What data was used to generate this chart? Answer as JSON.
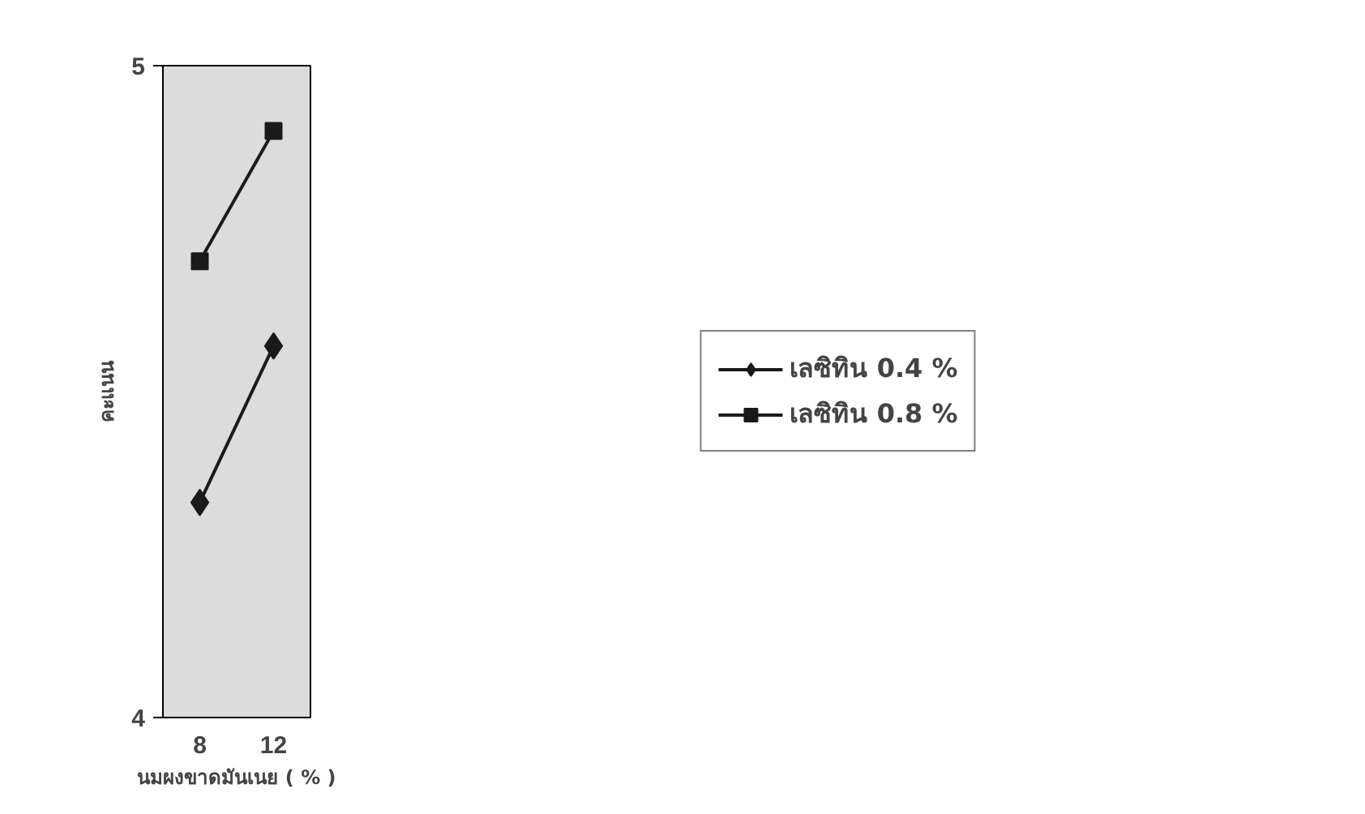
{
  "chart_data": {
    "type": "line",
    "xlabel": "นมผงขาดมันเนย ( % )",
    "ylabel": "คะแนน",
    "categories": [
      "8",
      "12"
    ],
    "series": [
      {
        "name": "เลซิทิน 0.4 %",
        "color": "#1a1a1a",
        "marker": "diamond",
        "values": [
          4.33,
          4.57
        ]
      },
      {
        "name": "เลซิทิน 0.8 %",
        "color": "#1a1a1a",
        "marker": "square",
        "values": [
          4.7,
          4.9
        ]
      }
    ],
    "ylim": [
      4,
      5
    ],
    "yticks": [
      4,
      5
    ],
    "legend": "right",
    "line_style": "solid"
  }
}
